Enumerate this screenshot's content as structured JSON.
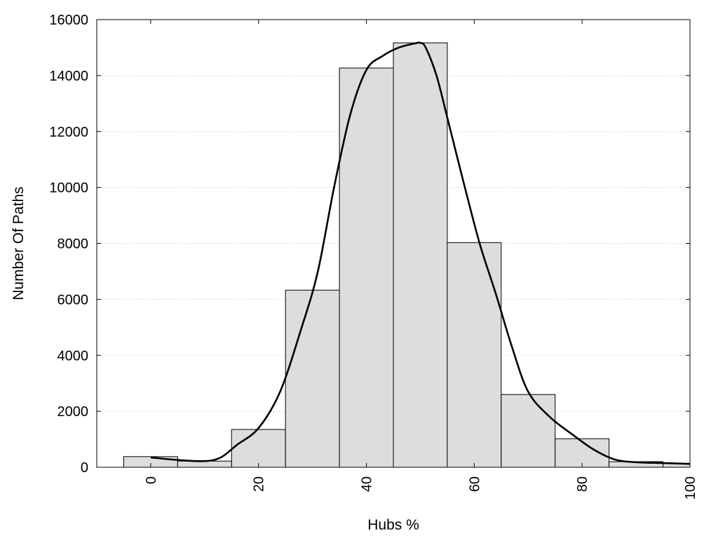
{
  "chart_data": {
    "type": "bar",
    "xlabel": "Hubs %",
    "ylabel": "Number Of Paths",
    "xlim": [
      -10,
      100
    ],
    "ylim": [
      0,
      16000
    ],
    "grid": "horizontal dotted",
    "x_ticks": [
      "0",
      "20",
      "40",
      "60",
      "80",
      "100"
    ],
    "y_ticks": [
      "0",
      "2000",
      "4000",
      "6000",
      "8000",
      "10000",
      "12000",
      "14000",
      "16000"
    ],
    "bin_width": 10,
    "bins": [
      {
        "center": 0,
        "value": 380
      },
      {
        "center": 10,
        "value": 220
      },
      {
        "center": 20,
        "value": 1350
      },
      {
        "center": 30,
        "value": 6330
      },
      {
        "center": 40,
        "value": 14270
      },
      {
        "center": 50,
        "value": 15170
      },
      {
        "center": 60,
        "value": 8030
      },
      {
        "center": 70,
        "value": 2600
      },
      {
        "center": 80,
        "value": 1020
      },
      {
        "center": 90,
        "value": 200
      },
      {
        "center": 100,
        "value": 130
      }
    ],
    "density_curve": {
      "x": [
        0,
        5,
        10,
        13,
        16,
        20,
        24,
        28,
        31,
        34,
        37,
        40,
        43,
        46,
        49,
        50,
        51,
        53,
        55,
        58,
        61,
        64,
        67,
        70,
        74,
        78,
        82,
        86,
        90,
        95,
        100
      ],
      "y": [
        350,
        260,
        220,
        350,
        800,
        1400,
        2700,
        5000,
        7000,
        10000,
        12600,
        14200,
        14700,
        15000,
        15150,
        15170,
        15000,
        14000,
        12500,
        10200,
        8000,
        6200,
        4300,
        2700,
        1800,
        1200,
        650,
        280,
        180,
        150,
        120
      ]
    },
    "colors": {
      "bar_fill": "#dddddd",
      "bar_stroke": "#000000",
      "curve": "#000000",
      "grid": "#bbbbbb"
    }
  }
}
